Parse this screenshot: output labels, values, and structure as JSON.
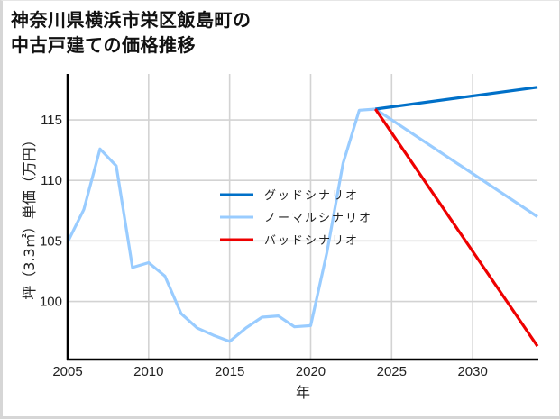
{
  "chart_data": {
    "type": "line",
    "title": "神奈川県横浜市栄区飯島町の中古戸建ての価格推移",
    "title_lines": [
      "神奈川県横浜市栄区飯島町の",
      "中古戸建ての価格推移"
    ],
    "xlabel": "年",
    "ylabel": "坪（3.3㎡）単価（万円）",
    "xlim": [
      2005,
      2034
    ],
    "ylim": [
      95.2,
      118.8
    ],
    "xticks": [
      2005,
      2010,
      2015,
      2020,
      2025,
      2030
    ],
    "yticks": [
      100,
      105,
      110,
      115
    ],
    "grid": true,
    "legend_position": "center",
    "series": [
      {
        "name": "グッドシナリオ",
        "color": "#0070c8",
        "x": [
          2024,
          2034
        ],
        "values": [
          115.9,
          117.7
        ]
      },
      {
        "name": "ノーマルシナリオ",
        "color": "#99ccff",
        "x": [
          2005,
          2006,
          2007,
          2008,
          2009,
          2010,
          2011,
          2012,
          2013,
          2014,
          2015,
          2016,
          2017,
          2018,
          2019,
          2020,
          2021,
          2022,
          2023,
          2024,
          2034
        ],
        "values": [
          104.9,
          107.6,
          112.6,
          111.2,
          102.8,
          103.2,
          102.1,
          99.0,
          97.8,
          97.2,
          96.7,
          97.8,
          98.7,
          98.8,
          97.9,
          98.0,
          104.0,
          111.4,
          115.8,
          115.9,
          107.0
        ]
      },
      {
        "name": "バッドシナリオ",
        "color": "#ee0000",
        "x": [
          2024,
          2034
        ],
        "values": [
          115.9,
          96.3
        ]
      }
    ]
  }
}
